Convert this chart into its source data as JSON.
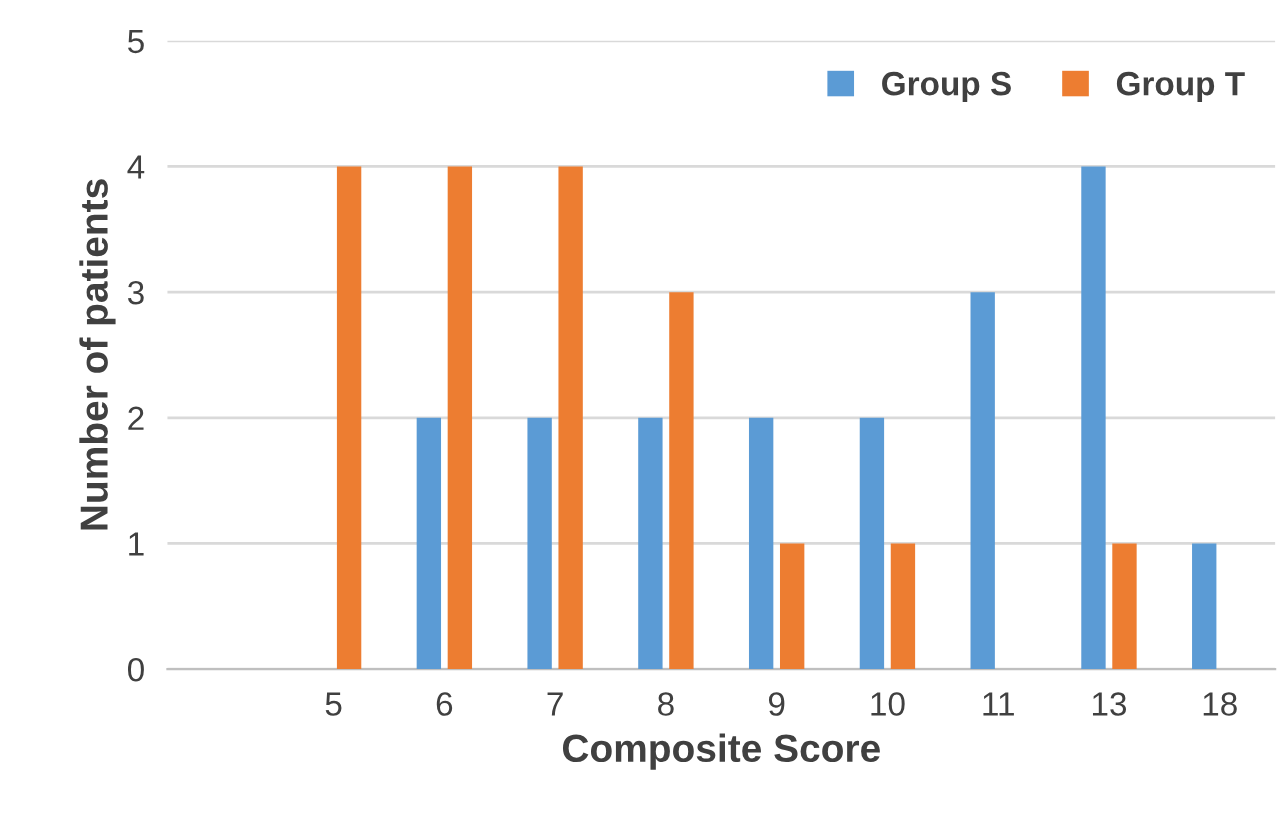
{
  "chart_data": {
    "type": "bar",
    "xlabel": "Composite Score",
    "ylabel": "Number of patients",
    "categories": [
      null,
      "5",
      "6",
      "7",
      "8",
      "9",
      "10",
      "11",
      "13",
      "18"
    ],
    "series": [
      {
        "name": "Group S",
        "color": "#5b9bd5",
        "values": [
          null,
          null,
          2,
          2,
          2,
          2,
          2,
          3,
          4,
          1
        ]
      },
      {
        "name": "Group T",
        "color": "#ed7d31",
        "values": [
          null,
          4,
          4,
          4,
          3,
          1,
          1,
          null,
          1,
          null
        ]
      }
    ],
    "ylim": [
      0,
      5
    ],
    "yticks": [
      0,
      1,
      2,
      3,
      4,
      5
    ],
    "grid": "y",
    "legend": "top right"
  }
}
